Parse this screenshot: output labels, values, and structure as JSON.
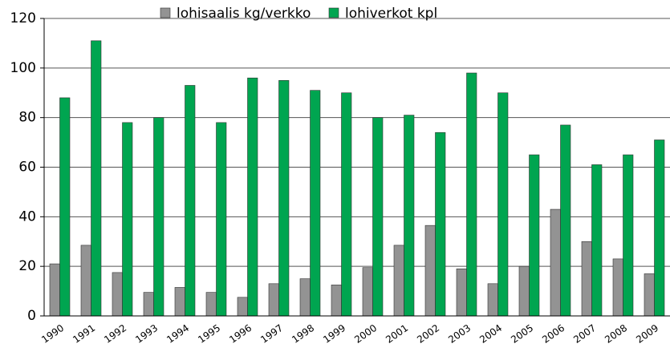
{
  "chart_data": {
    "type": "bar",
    "categories": [
      "1990",
      "1991",
      "1992",
      "1993",
      "1994",
      "1995",
      "1996",
      "1997",
      "1998",
      "1999",
      "2000",
      "2001",
      "2002",
      "2003",
      "2004",
      "2005",
      "2006",
      "2007",
      "2008",
      "2009"
    ],
    "series": [
      {
        "name": "lohisaalis kg/verkko",
        "color": "#939393",
        "values": [
          21,
          28.5,
          17.5,
          9.5,
          11.5,
          9.5,
          7.5,
          13,
          15,
          12.5,
          19.5,
          28.5,
          36.5,
          19,
          13,
          20,
          43,
          30,
          23,
          17
        ]
      },
      {
        "name": "lohiverkot kpl",
        "color": "#00a550",
        "values": [
          88,
          111,
          78,
          80,
          93,
          78,
          96,
          95,
          91,
          90,
          80,
          81,
          74,
          98,
          90,
          65,
          77,
          61,
          65,
          71
        ]
      }
    ],
    "ylim": [
      0,
      120
    ],
    "yticks": [
      0,
      20,
      40,
      60,
      80,
      100,
      120
    ],
    "grid": true,
    "legend": "top"
  }
}
